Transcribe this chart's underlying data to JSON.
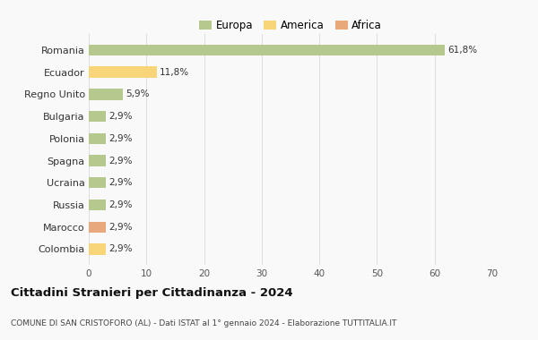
{
  "categories": [
    "Romania",
    "Ecuador",
    "Regno Unito",
    "Bulgaria",
    "Polonia",
    "Spagna",
    "Ucraina",
    "Russia",
    "Marocco",
    "Colombia"
  ],
  "values": [
    61.8,
    11.8,
    5.9,
    2.9,
    2.9,
    2.9,
    2.9,
    2.9,
    2.9,
    2.9
  ],
  "labels": [
    "61,8%",
    "11,8%",
    "5,9%",
    "2,9%",
    "2,9%",
    "2,9%",
    "2,9%",
    "2,9%",
    "2,9%",
    "2,9%"
  ],
  "colors": [
    "#b5c98e",
    "#f9d57a",
    "#b5c98e",
    "#b5c98e",
    "#b5c98e",
    "#b5c98e",
    "#b5c98e",
    "#b5c98e",
    "#e8a87c",
    "#f9d57a"
  ],
  "legend_labels": [
    "Europa",
    "America",
    "Africa"
  ],
  "legend_colors": [
    "#b5c98e",
    "#f9d57a",
    "#e8a87c"
  ],
  "xlim": [
    0,
    70
  ],
  "xticks": [
    0,
    10,
    20,
    30,
    40,
    50,
    60,
    70
  ],
  "title": "Cittadini Stranieri per Cittadinanza - 2024",
  "subtitle": "COMUNE DI SAN CRISTOFORO (AL) - Dati ISTAT al 1° gennaio 2024 - Elaborazione TUTTITALIA.IT",
  "background_color": "#f9f9f9",
  "grid_color": "#dddddd",
  "bar_height": 0.5
}
